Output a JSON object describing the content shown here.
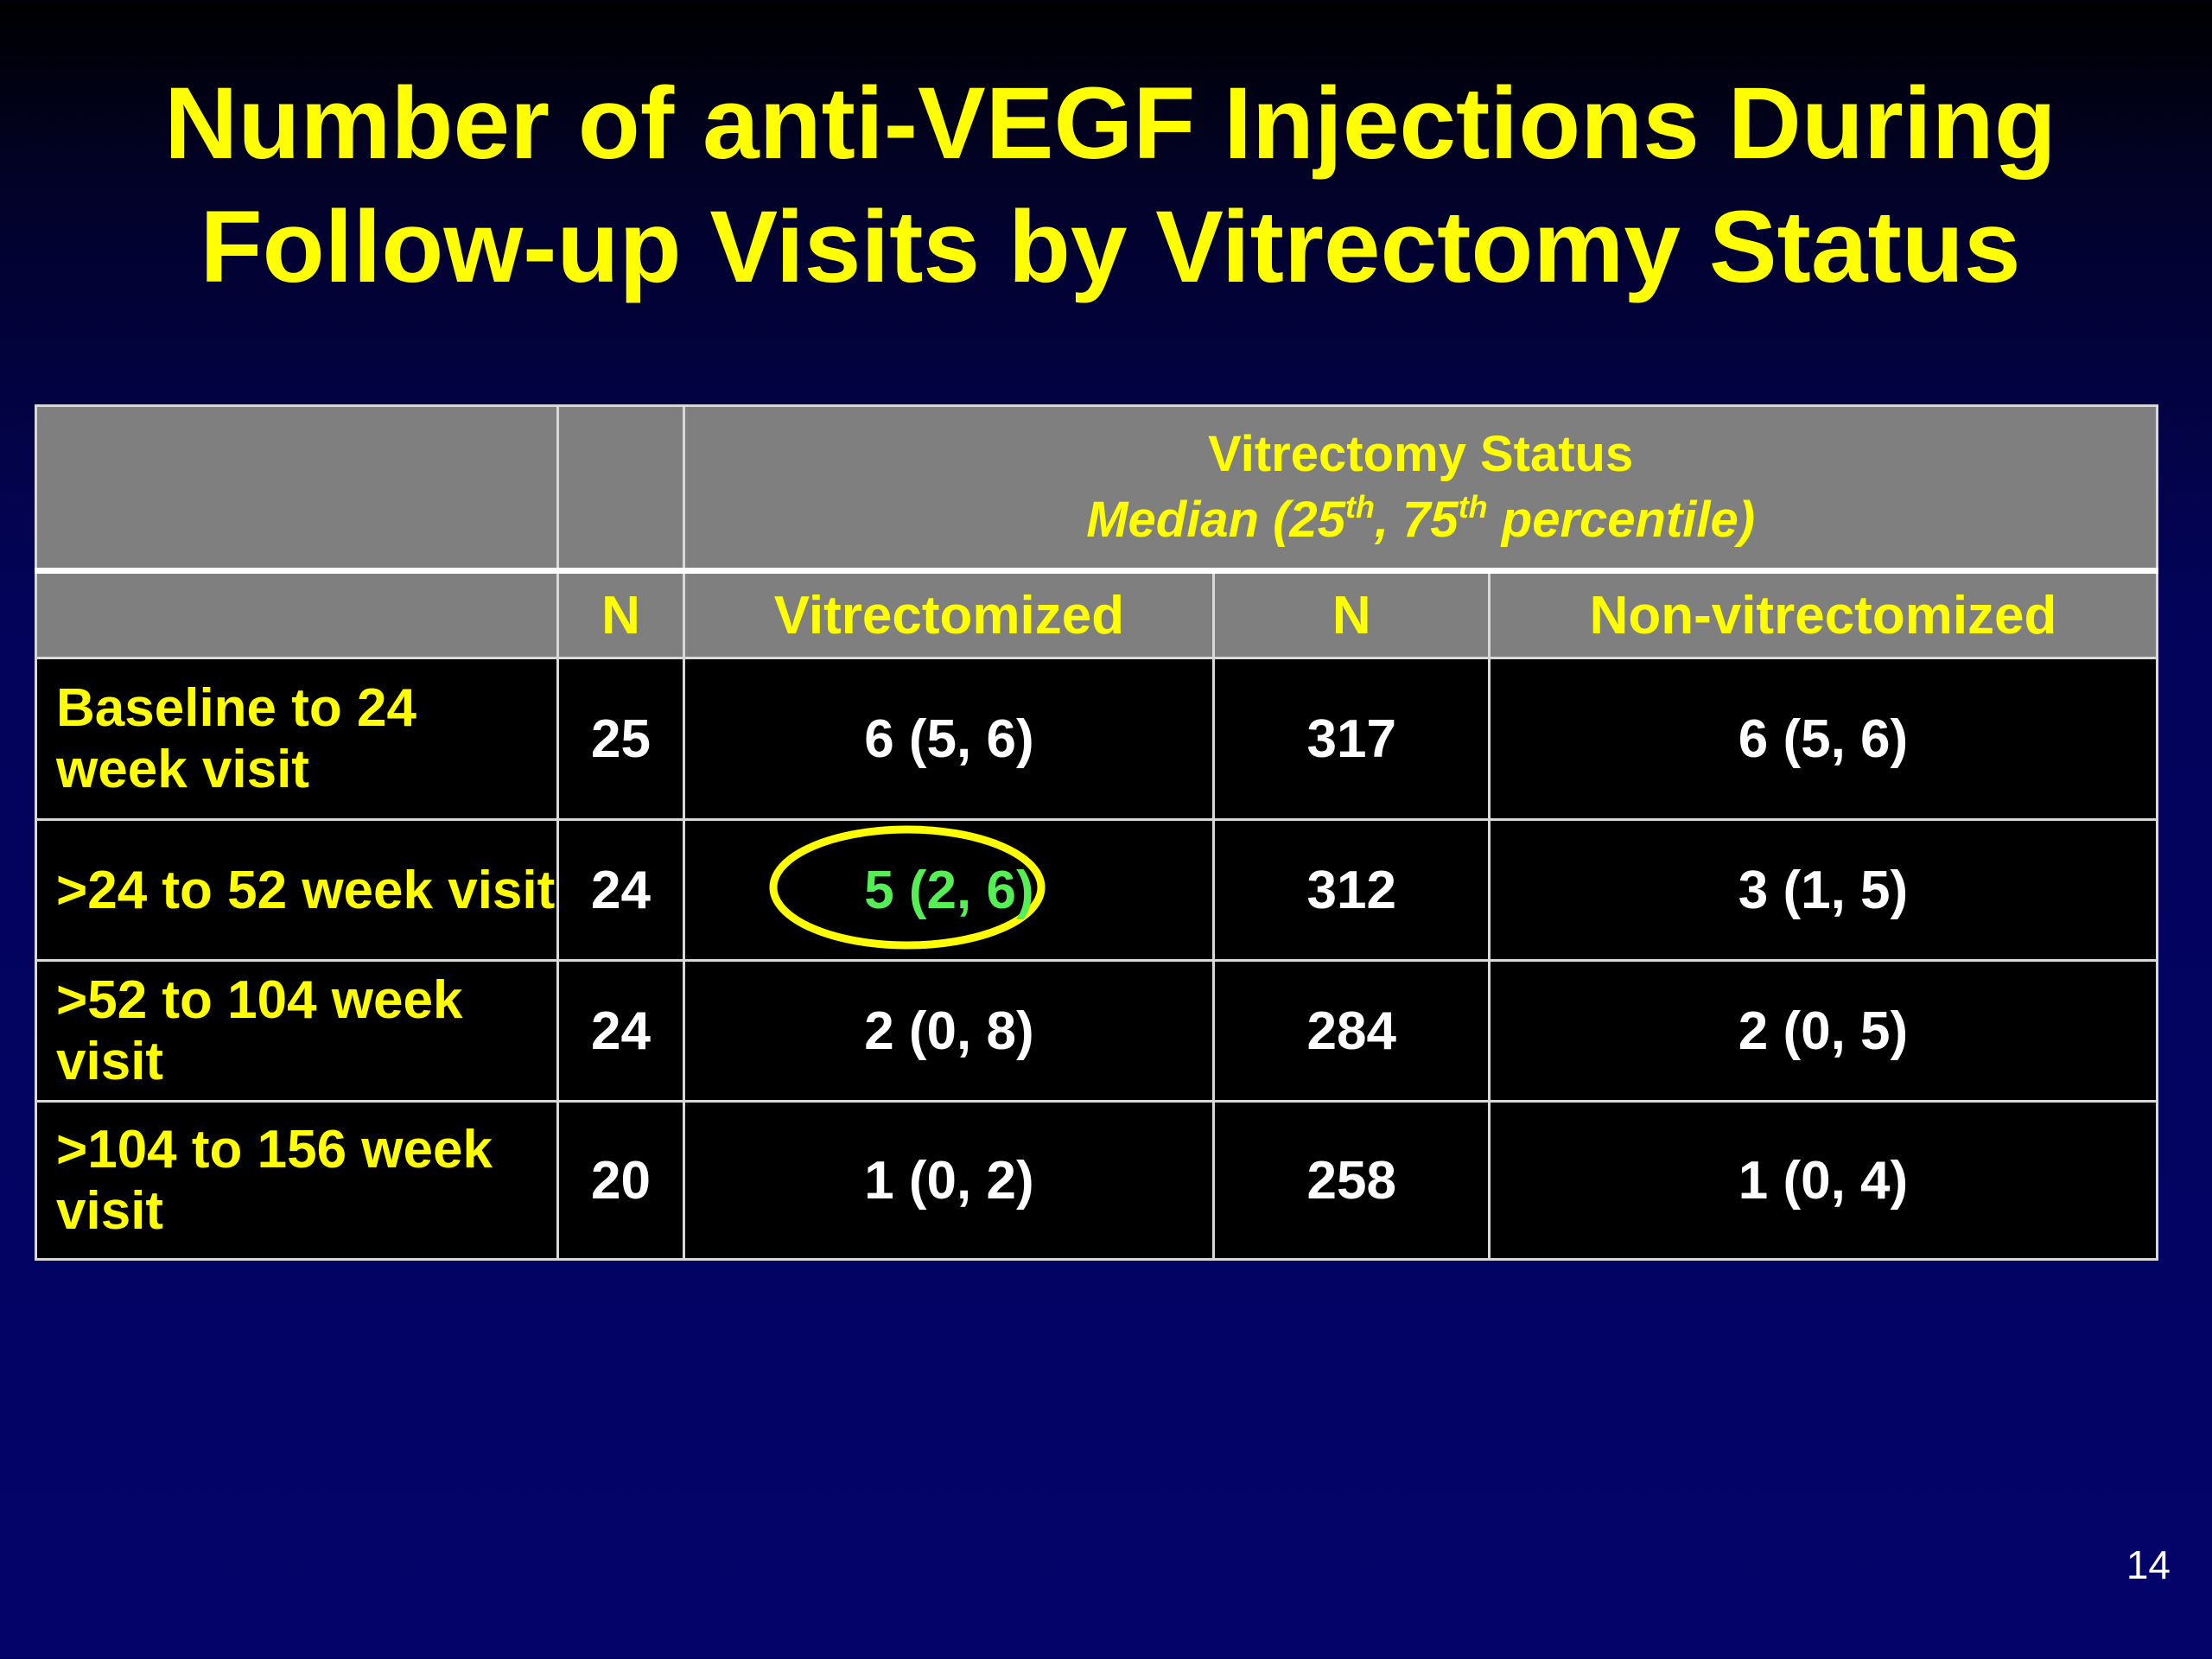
{
  "slide": {
    "title_line1": "Number of anti-VEGF Injections During",
    "title_line2": "Follow-up Visits by Vitrectomy Status",
    "page_number": "14"
  },
  "table": {
    "group_header": {
      "title": "Vitrectomy Status",
      "subtitle_prefix": "Median (25",
      "sup1": "th",
      "subtitle_mid": ", 75",
      "sup2": "th",
      "subtitle_suffix": " percentile)"
    },
    "columns": [
      "",
      "N",
      "Vitrectomized",
      "N",
      "Non-vitrectomized"
    ],
    "rows": [
      {
        "label": "Baseline to 24 week visit",
        "n_vit": "25",
        "vitrectomized": "6 (5, 6)",
        "n_nonvit": "317",
        "non_vitrectomized": "6  (5, 6)"
      },
      {
        "label": ">24 to 52 week visit",
        "n_vit": "24",
        "vitrectomized": "5 (2, 6)",
        "n_nonvit": "312",
        "non_vitrectomized": "3  (1, 5)"
      },
      {
        "label": ">52 to 104 week visit",
        "n_vit": "24",
        "vitrectomized": "2 (0, 8)",
        "n_nonvit": "284",
        "non_vitrectomized": "2 (0, 5)"
      },
      {
        "label": ">104 to 156 week visit",
        "n_vit": "20",
        "vitrectomized": "1 (0, 2)",
        "n_nonvit": "258",
        "non_vitrectomized": "1 (0, 4)"
      }
    ],
    "highlight": {
      "row_index": 1,
      "column": "vitrectomized",
      "value_color": "#55ee55",
      "ring_color": "#ffff00"
    }
  },
  "colors": {
    "title": "#ffff00",
    "header_bg": "#7f7f7f",
    "body_bg": "#000000",
    "row_label": "#ffff00",
    "value_text": "#ffffff",
    "slide_bg": "#03036a"
  }
}
